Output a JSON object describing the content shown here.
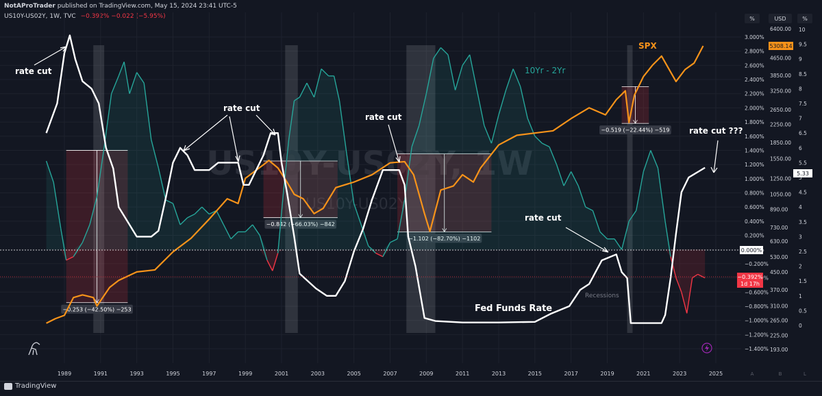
{
  "header": {
    "author": "NotAProTrader",
    "published": "published on TradingView.com, May 15, 2024 23:41 UTC-5"
  },
  "symbol": {
    "name": "US10Y-US02Y, 1W, TVC",
    "change": "−0.392%  −0.022 (−5.95%)",
    "watermark": "US10Y-US02Y, 1W",
    "watermark2": "US10Y-US02Y"
  },
  "axis_units": {
    "pct": "%",
    "usd": "USD"
  },
  "footer": {
    "brand": "TradingView",
    "scale_buttons": [
      "A",
      "B",
      "L"
    ]
  },
  "colors": {
    "background": "#131722",
    "spread_positive": "#26a69a",
    "spread_negative": "#f23645",
    "spx": "#f7931a",
    "fed_funds": "#ffffff",
    "recession_band": "#b2b5be"
  },
  "annotations": {
    "rate_cut_1": "rate cut",
    "rate_cut_2": "rate cut",
    "rate_cut_3": "rate cut",
    "rate_cut_4": "rate cut",
    "rate_cut_q": "rate cut ???",
    "spx": "SPX",
    "spread": "10Yr - 2Yr",
    "fed_funds": "Fed Funds Rate",
    "recessions": "Recessions"
  },
  "measurements": [
    {
      "label": "−0.253 (−42.50%) −253"
    },
    {
      "label": "−0.842 (−66.03%) −842"
    },
    {
      "label": "−1.102 (−82.70%) −1102"
    },
    {
      "label": "−0.519 (−22.44%) −519"
    }
  ],
  "price_tags": {
    "spx_last": "5308.14",
    "ffr_last": "5.33",
    "zero": "0.000%",
    "spread_last": "−0.392%",
    "spread_countdown": "1d 17h"
  },
  "chart_data": {
    "type": "line",
    "x_ticks": [
      "1989",
      "1991",
      "1993",
      "1995",
      "1997",
      "1999",
      "2001",
      "2003",
      "2005",
      "2007",
      "2009",
      "2011",
      "2013",
      "2015",
      "2017",
      "2019",
      "2021",
      "2023",
      "2025"
    ],
    "pct_axis": {
      "ticks": [
        "3.000%",
        "2.800%",
        "2.600%",
        "2.400%",
        "2.200%",
        "2.000%",
        "1.800%",
        "1.600%",
        "1.400%",
        "1.200%",
        "1.000%",
        "0.800%",
        "0.600%",
        "0.400%",
        "0.200%",
        "0.000%",
        "−0.200%",
        "−0.400%",
        "−0.600%",
        "−0.800%",
        "−1.000%",
        "−1.200%",
        "−1.400%"
      ],
      "range": [
        -1.4,
        3.0
      ]
    },
    "usd_axis": {
      "ticks": [
        "6400.00",
        "4650.00",
        "3850.00",
        "3250.00",
        "2650.00",
        "2250.00",
        "1850.00",
        "1550.00",
        "1250.00",
        "1050.00",
        "890.00",
        "730.00",
        "630.00",
        "530.00",
        "450.00",
        "370.00",
        "310.00",
        "265.00",
        "225.00",
        "193.00"
      ],
      "scale": "log",
      "range": [
        193,
        6400
      ]
    },
    "ffr_axis": {
      "ticks": [
        "10",
        "9.5",
        "9",
        "8.5",
        "8",
        "7.5",
        "7",
        "6.5",
        "6",
        "5.5",
        "5",
        "4.5",
        "4",
        "3.5",
        "3",
        "2.5",
        "2",
        "1.5",
        "1",
        "0.5",
        "0"
      ],
      "range": [
        0,
        10
      ]
    },
    "recessions": [
      [
        1990.6,
        1991.2
      ],
      [
        2001.2,
        2001.9
      ],
      [
        2007.9,
        2009.5
      ],
      [
        2020.1,
        2020.4
      ]
    ],
    "series": [
      {
        "name": "10Yr - 2Yr",
        "x": [
          1988.0,
          1988.4,
          1988.8,
          1989.1,
          1989.5,
          1990.0,
          1990.4,
          1990.8,
          1991.2,
          1991.6,
          1992.0,
          1992.3,
          1992.6,
          1993.0,
          1993.4,
          1993.8,
          1994.2,
          1994.6,
          1995.0,
          1995.4,
          1995.8,
          1996.2,
          1996.6,
          1997.0,
          1997.4,
          1997.8,
          1998.2,
          1998.6,
          1999.0,
          1999.4,
          1999.8,
          2000.2,
          2000.5,
          2000.8,
          2001.1,
          2001.4,
          2001.7,
          2002.0,
          2002.4,
          2002.8,
          2003.2,
          2003.6,
          2003.9,
          2004.2,
          2004.6,
          2005.0,
          2005.4,
          2005.8,
          2006.2,
          2006.6,
          2007.0,
          2007.4,
          2007.8,
          2008.2,
          2008.6,
          2009.0,
          2009.4,
          2009.8,
          2010.2,
          2010.6,
          2011.0,
          2011.4,
          2011.8,
          2012.2,
          2012.6,
          2013.0,
          2013.4,
          2013.8,
          2014.2,
          2014.6,
          2015.0,
          2015.4,
          2015.8,
          2016.2,
          2016.6,
          2017.0,
          2017.4,
          2017.8,
          2018.2,
          2018.6,
          2019.0,
          2019.4,
          2019.8,
          2020.2,
          2020.6,
          2021.0,
          2021.4,
          2021.8,
          2022.2,
          2022.5,
          2022.8,
          2023.1,
          2023.4,
          2023.7,
          2024.0,
          2024.4
        ],
        "values": [
          1.25,
          0.95,
          0.3,
          -0.15,
          -0.1,
          0.1,
          0.35,
          0.75,
          1.45,
          2.2,
          2.45,
          2.65,
          2.2,
          2.5,
          2.35,
          1.55,
          1.15,
          0.7,
          0.65,
          0.35,
          0.45,
          0.5,
          0.6,
          0.5,
          0.55,
          0.35,
          0.15,
          0.25,
          0.25,
          0.35,
          0.2,
          -0.15,
          -0.3,
          -0.05,
          0.8,
          1.55,
          2.1,
          2.15,
          2.35,
          2.15,
          2.55,
          2.45,
          2.45,
          2.1,
          1.35,
          0.65,
          0.35,
          0.05,
          -0.05,
          -0.1,
          0.1,
          0.15,
          0.7,
          1.45,
          1.75,
          2.2,
          2.7,
          2.85,
          2.75,
          2.25,
          2.6,
          2.75,
          2.25,
          1.75,
          1.5,
          1.9,
          2.25,
          2.55,
          2.3,
          1.85,
          1.6,
          1.5,
          1.45,
          1.2,
          0.9,
          1.1,
          0.9,
          0.6,
          0.55,
          0.25,
          0.15,
          0.15,
          0.0,
          0.4,
          0.55,
          1.1,
          1.4,
          1.15,
          0.4,
          -0.1,
          -0.4,
          -0.6,
          -0.9,
          -0.4,
          -0.35,
          -0.4
        ]
      },
      {
        "name": "SPX",
        "x": [
          1988.0,
          1988.5,
          1989.0,
          1989.5,
          1990.0,
          1990.6,
          1990.8,
          1991.5,
          1992.0,
          1993.0,
          1994.0,
          1995.0,
          1996.0,
          1997.0,
          1998.0,
          1998.6,
          1999.0,
          2000.0,
          2000.3,
          2000.8,
          2001.3,
          2001.7,
          2002.2,
          2002.8,
          2003.3,
          2004.0,
          2005.0,
          2006.0,
          2007.0,
          2007.8,
          2008.3,
          2008.9,
          2009.2,
          2009.8,
          2010.5,
          2011.0,
          2011.6,
          2012.0,
          2013.0,
          2014.0,
          2015.0,
          2016.0,
          2017.0,
          2018.0,
          2018.9,
          2019.5,
          2020.0,
          2020.2,
          2020.5,
          2021.0,
          2021.5,
          2022.0,
          2022.8,
          2023.3,
          2023.8,
          2024.3
        ],
        "values": [
          257,
          270,
          280,
          340,
          350,
          340,
          310,
          380,
          410,
          450,
          460,
          560,
          650,
          800,
          1000,
          950,
          1250,
          1450,
          1520,
          1400,
          1200,
          1050,
          1000,
          850,
          900,
          1130,
          1200,
          1300,
          1480,
          1500,
          1300,
          850,
          700,
          1100,
          1150,
          1300,
          1200,
          1400,
          1800,
          2000,
          2050,
          2100,
          2400,
          2700,
          2500,
          2950,
          3250,
          2300,
          3100,
          3800,
          4300,
          4750,
          3600,
          4100,
          4400,
          5308
        ]
      },
      {
        "name": "Fed Funds Rate",
        "x": [
          1988.0,
          1988.6,
          1989.0,
          1989.3,
          1989.6,
          1990.0,
          1990.5,
          1990.9,
          1991.3,
          1991.7,
          1992.0,
          1992.5,
          1993.0,
          1993.8,
          1994.2,
          1994.6,
          1995.0,
          1995.4,
          1995.8,
          1996.2,
          1997.0,
          1997.5,
          1998.0,
          1998.6,
          1998.9,
          1999.2,
          1999.6,
          2000.0,
          2000.4,
          2000.8,
          2001.0,
          2001.3,
          2001.7,
          2002.0,
          2002.9,
          2003.5,
          2004.0,
          2004.5,
          2005.0,
          2005.5,
          2006.0,
          2006.6,
          2007.5,
          2007.8,
          2008.0,
          2008.4,
          2008.9,
          2009.5,
          2011.0,
          2013.0,
          2015.0,
          2015.9,
          2016.9,
          2017.5,
          2018.0,
          2018.7,
          2019.5,
          2019.8,
          2020.1,
          2020.3,
          2022.0,
          2022.2,
          2022.5,
          2022.8,
          2023.1,
          2023.5,
          2024.4
        ],
        "values": [
          6.5,
          7.5,
          9.2,
          9.8,
          9.0,
          8.25,
          8.0,
          7.5,
          6.0,
          5.3,
          4.0,
          3.5,
          3.0,
          3.0,
          3.2,
          4.3,
          5.5,
          6.0,
          5.75,
          5.25,
          5.25,
          5.5,
          5.5,
          5.5,
          4.75,
          4.75,
          5.25,
          5.75,
          6.5,
          6.5,
          5.5,
          4.5,
          3.0,
          1.75,
          1.25,
          1.0,
          1.0,
          1.5,
          2.5,
          3.25,
          4.25,
          5.25,
          5.25,
          4.75,
          3.0,
          2.0,
          0.25,
          0.15,
          0.1,
          0.1,
          0.12,
          0.4,
          0.65,
          1.2,
          1.4,
          2.2,
          2.4,
          1.8,
          1.6,
          0.08,
          0.08,
          0.35,
          1.6,
          3.1,
          4.5,
          5.0,
          5.33
        ]
      }
    ]
  }
}
